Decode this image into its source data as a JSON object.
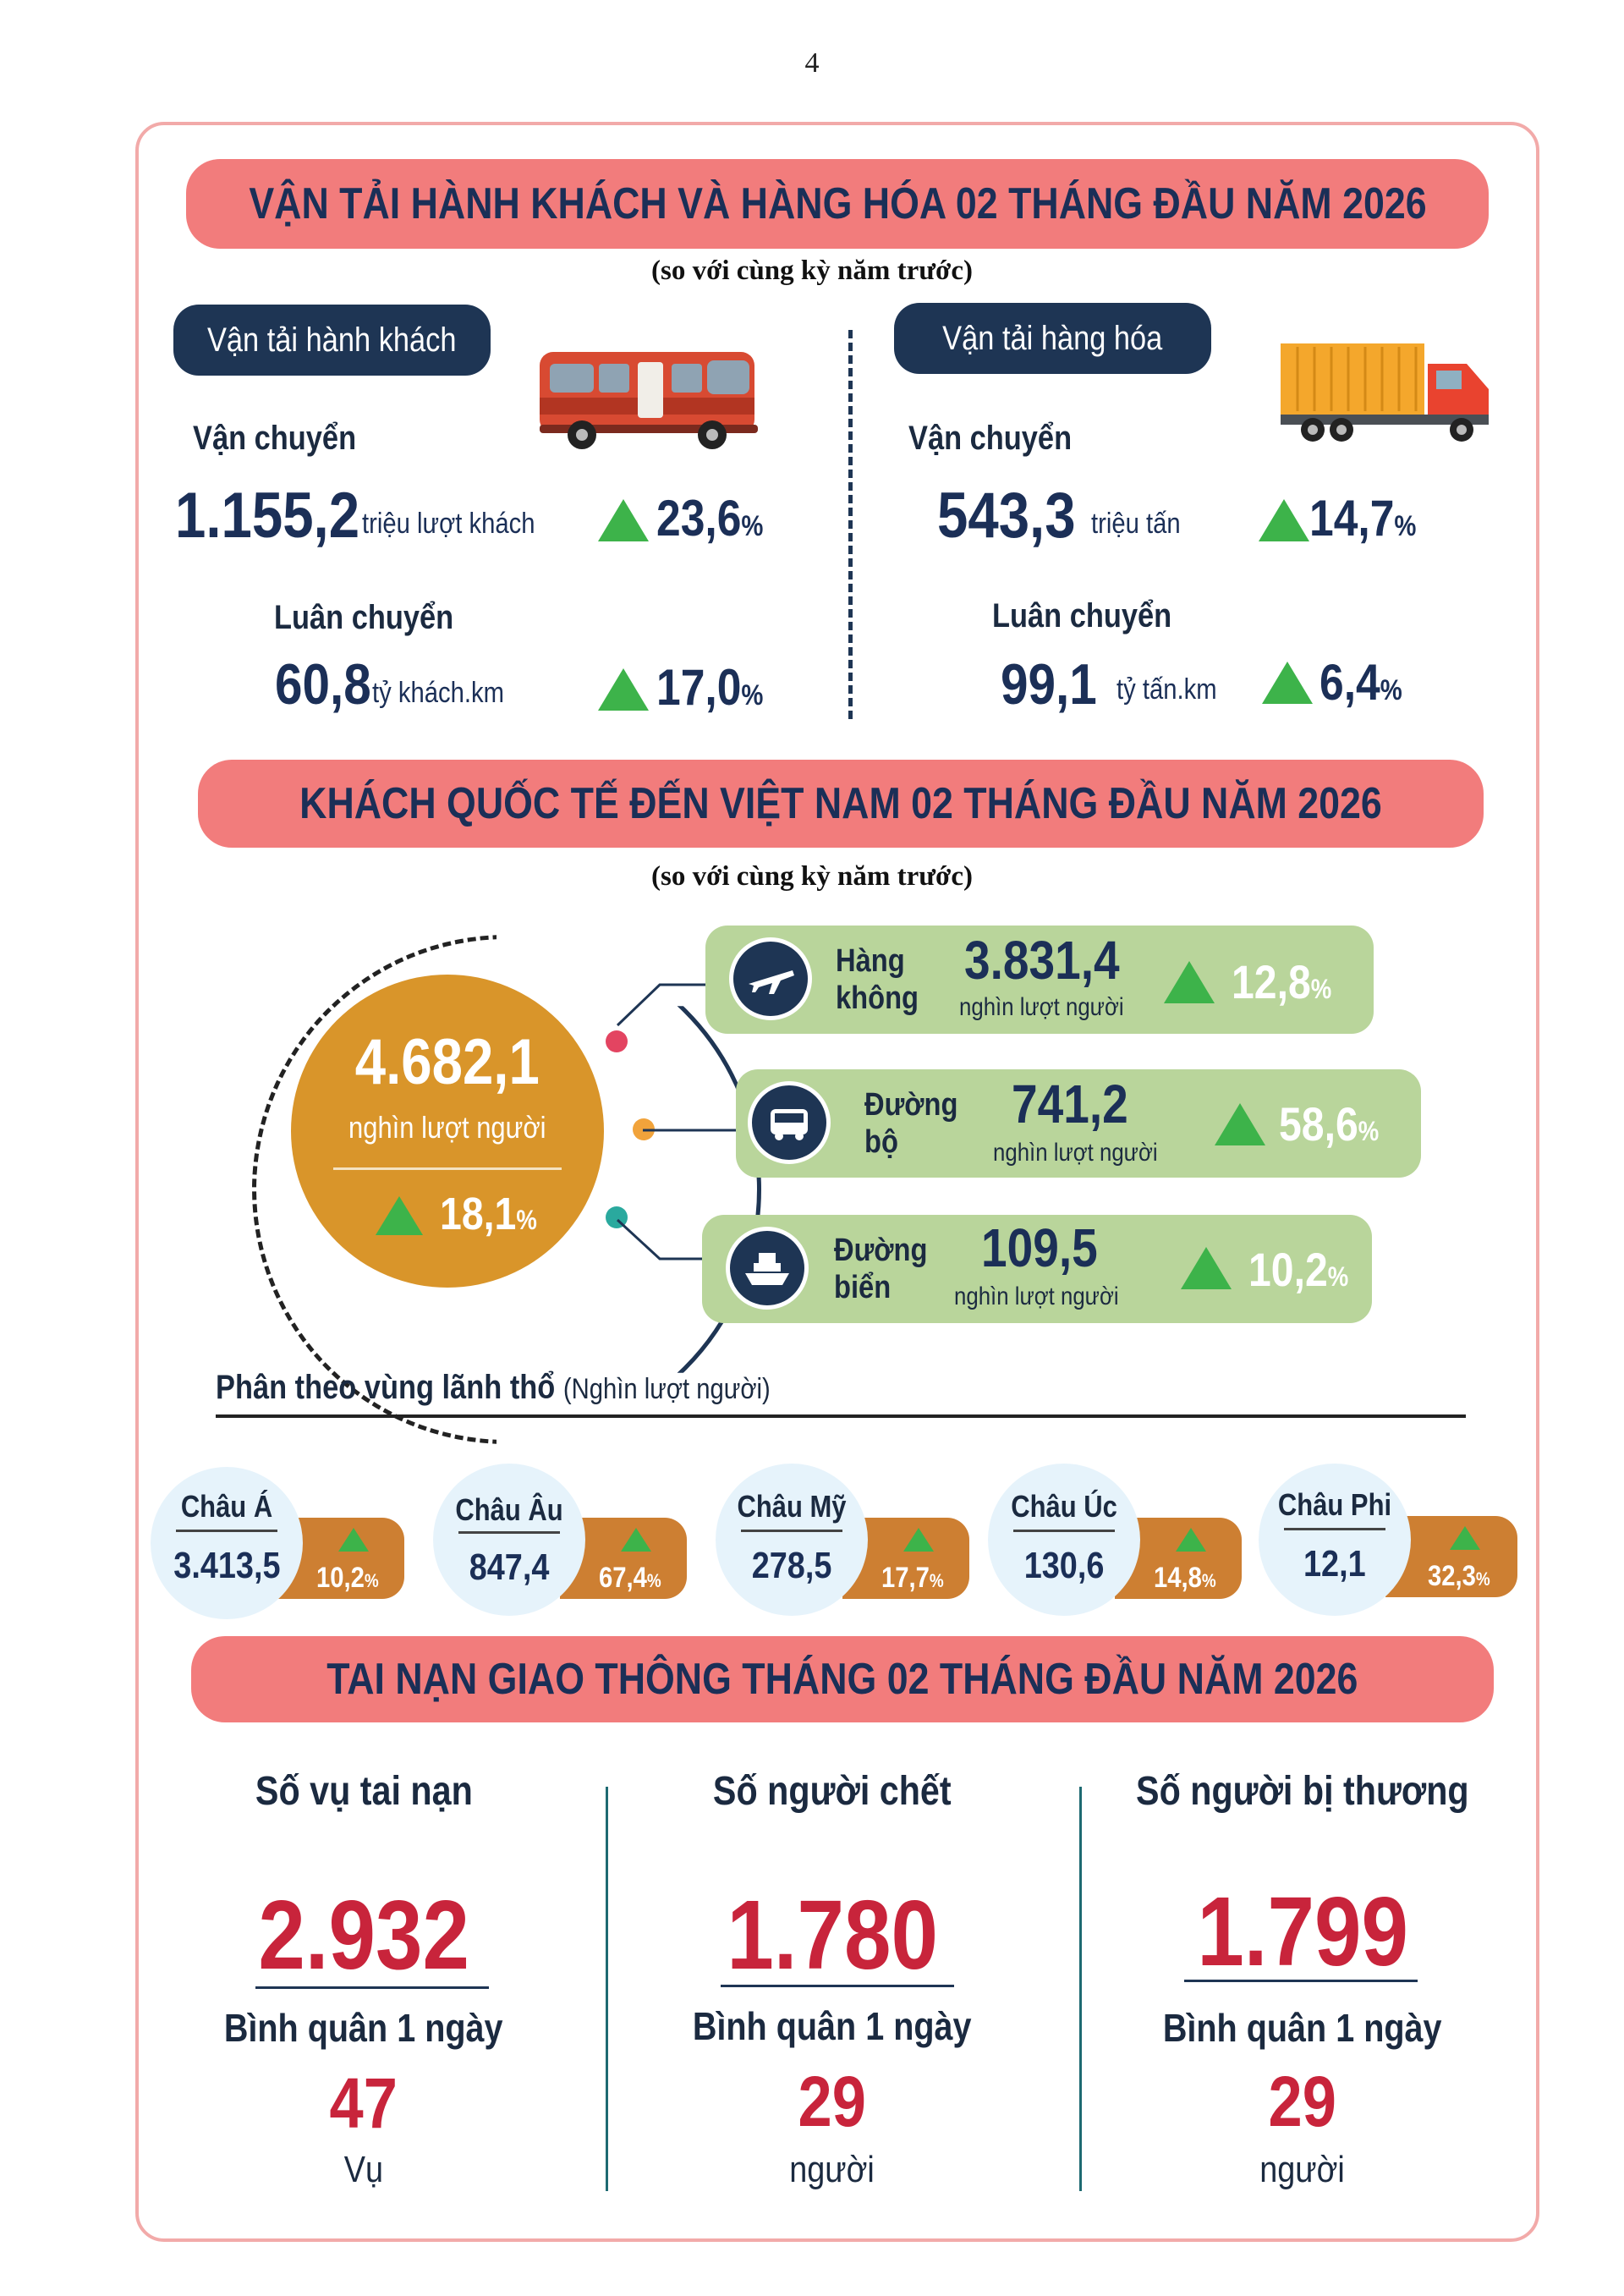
{
  "page_number": "4",
  "transport": {
    "title": "VẬN TẢI HÀNH KHÁCH VÀ HÀNG HÓA 02 THÁNG ĐẦU NĂM 2026",
    "note": "(so với cùng kỳ năm trước)",
    "passenger": {
      "label": "Vận tải hành khách",
      "carried_label": "Vận chuyển",
      "carried_value": "1.155,2",
      "carried_unit": "triệu lượt khách",
      "carried_pct": "23,6",
      "rotation_label": "Luân chuyển",
      "rotation_value": "60,8",
      "rotation_unit": "tỷ khách.km",
      "rotation_pct": "17,0"
    },
    "freight": {
      "label": "Vận tải hàng hóa",
      "carried_label": "Vận chuyển",
      "carried_value": "543,3",
      "carried_unit": "triệu tấn",
      "carried_pct": "14,7",
      "rotation_label": "Luân chuyển",
      "rotation_value": "99,1",
      "rotation_unit": "tỷ tấn.km",
      "rotation_pct": "6,4"
    },
    "pct_sign": "%"
  },
  "international": {
    "title": "KHÁCH QUỐC TẾ ĐẾN VIỆT NAM 02 THÁNG ĐẦU NĂM 2026",
    "note": "(so với cùng kỳ năm trước)",
    "total_value": "4.682,1",
    "total_unit": "nghìn lượt người",
    "total_pct": "18,1",
    "modes": [
      {
        "label_1": "Hàng",
        "label_2": "không",
        "value": "3.831,4",
        "unit": "nghìn lượt người",
        "pct": "12,8",
        "icon": "airplane-icon"
      },
      {
        "label_1": "Đường",
        "label_2": "bộ",
        "value": "741,2",
        "unit": "nghìn lượt người",
        "pct": "58,6",
        "icon": "bus-icon"
      },
      {
        "label_1": "Đường",
        "label_2": "biển",
        "value": "109,5",
        "unit": "nghìn lượt người",
        "pct": "10,2",
        "icon": "ship-icon"
      }
    ],
    "region_title": "Phân theo vùng lãnh thổ",
    "region_unit": "(Nghìn lượt người)",
    "regions": [
      {
        "name": "Châu Á",
        "value": "3.413,5",
        "pct": "10,2"
      },
      {
        "name": "Châu Âu",
        "value": "847,4",
        "pct": "67,4"
      },
      {
        "name": "Châu Mỹ",
        "value": "278,5",
        "pct": "17,7"
      },
      {
        "name": "Châu Úc",
        "value": "130,6",
        "pct": "14,8"
      },
      {
        "name": "Châu Phi",
        "value": "12,1",
        "pct": "32,3"
      }
    ]
  },
  "accidents": {
    "title": "TAI NẠN GIAO THÔNG THÁNG 02 THÁNG ĐẦU NĂM 2026",
    "avg_label": "Bình quân 1 ngày",
    "items": [
      {
        "title": "Số vụ tai nạn",
        "value": "2.932",
        "daily": "47",
        "unit": "Vụ"
      },
      {
        "title": "Số người chết",
        "value": "1.780",
        "daily": "29",
        "unit": "người"
      },
      {
        "title": "Số người bị thương",
        "value": "1.799",
        "daily": "29",
        "unit": "người"
      }
    ]
  },
  "colors": {
    "banner": "#f27c7c",
    "navy": "#1e3554",
    "green_up": "#3db34a",
    "green_box": "#b9d59b",
    "gold": "#d9952a",
    "copper": "#cd7f32",
    "red_value": "#c8243b"
  }
}
